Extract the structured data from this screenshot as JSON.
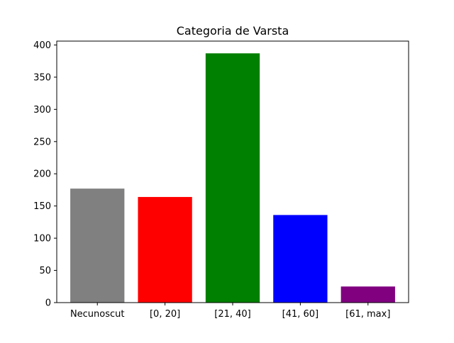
{
  "chart_data": {
    "type": "bar",
    "title": "Categoria de Varsta",
    "xlabel": "",
    "ylabel": "",
    "categories": [
      "Necunoscut",
      "[0, 20]",
      "[21, 40]",
      "[41, 60]",
      "[61, max]"
    ],
    "values": [
      177,
      164,
      387,
      136,
      25
    ],
    "colors": [
      "#808080",
      "#ff0000",
      "#008000",
      "#0000ff",
      "#800080"
    ],
    "ylim": [
      0,
      406
    ],
    "yticks": [
      0,
      50,
      100,
      150,
      200,
      250,
      300,
      350,
      400
    ],
    "grid": false,
    "legend": "none"
  }
}
